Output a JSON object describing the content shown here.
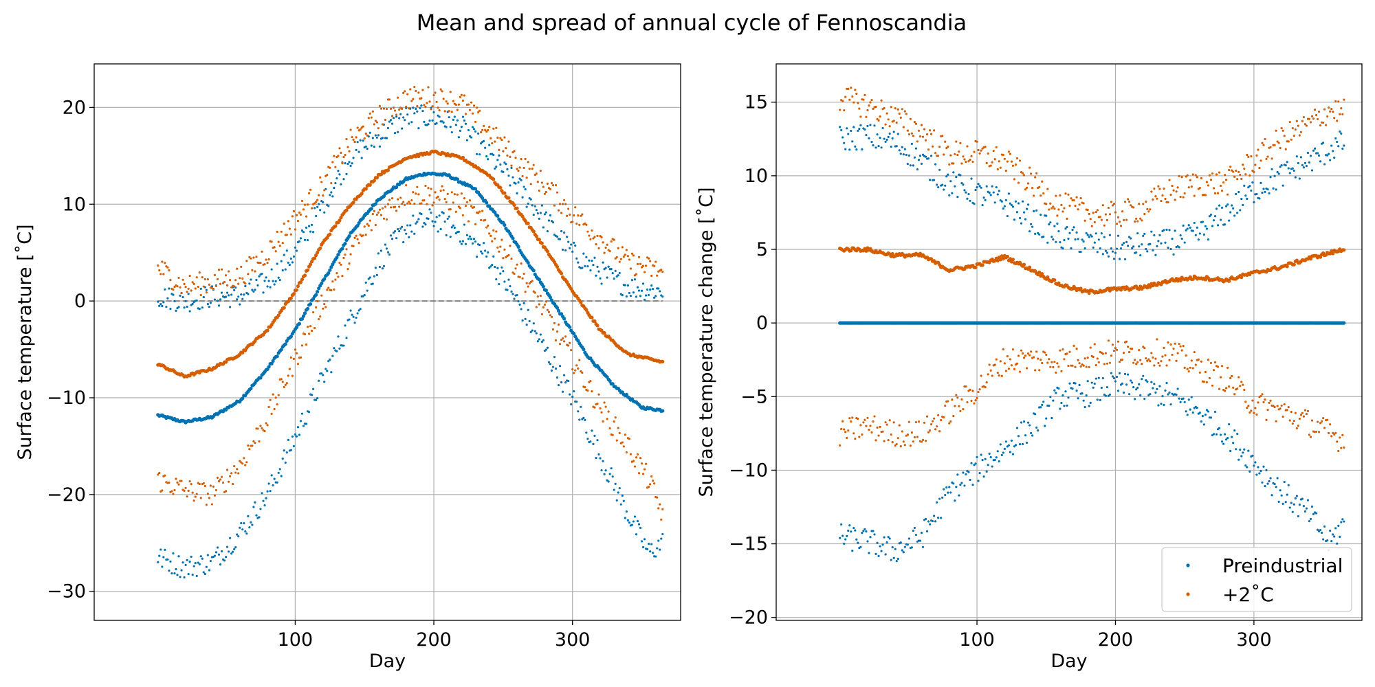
{
  "figure": {
    "title": "Mean and spread of annual cycle of Fennoscandia"
  },
  "colors": {
    "preindustrial": "#0072b2",
    "plus2": "#d55e00",
    "grid": "#b0b0b0",
    "zero_line": "#808080"
  },
  "chart_data": [
    {
      "type": "scatter",
      "xlabel": "Day",
      "ylabel": "Surface temperature [˚C]",
      "xlim": [
        -45,
        378
      ],
      "ylim": [
        -33,
        24.5
      ],
      "xticks": [
        100,
        200,
        300
      ],
      "yticks": [
        -30,
        -20,
        -10,
        0,
        10,
        20
      ],
      "grid": true,
      "reference_line": {
        "y": 0,
        "style": "dashed"
      },
      "series": [
        {
          "key": "pi_mean",
          "color_key": "preindustrial",
          "style": "mean",
          "knots": [
            [
              1,
              -11.8
            ],
            [
              20,
              -12.5
            ],
            [
              40,
              -12.0
            ],
            [
              60,
              -10.3
            ],
            [
              80,
              -7.0
            ],
            [
              100,
              -3.0
            ],
            [
              120,
              2.0
            ],
            [
              140,
              7.0
            ],
            [
              160,
              10.5
            ],
            [
              180,
              12.6
            ],
            [
              195,
              13.2
            ],
            [
              210,
              13.0
            ],
            [
              230,
              11.5
            ],
            [
              250,
              8.0
            ],
            [
              270,
              3.5
            ],
            [
              290,
              -1.0
            ],
            [
              310,
              -5.5
            ],
            [
              330,
              -8.8
            ],
            [
              350,
              -11.0
            ],
            [
              365,
              -11.3
            ]
          ]
        },
        {
          "key": "pi_max",
          "color_key": "preindustrial",
          "style": "spread",
          "knots": [
            [
              1,
              0.5
            ],
            [
              20,
              0.0
            ],
            [
              40,
              0.5
            ],
            [
              60,
              0.5
            ],
            [
              80,
              2.0
            ],
            [
              100,
              5.0
            ],
            [
              120,
              10.0
            ],
            [
              140,
              15.0
            ],
            [
              160,
              17.0
            ],
            [
              180,
              19.0
            ],
            [
              200,
              19.0
            ],
            [
              220,
              18.0
            ],
            [
              240,
              15.0
            ],
            [
              260,
              12.0
            ],
            [
              280,
              8.5
            ],
            [
              300,
              5.0
            ],
            [
              320,
              3.0
            ],
            [
              340,
              1.5
            ],
            [
              365,
              1.0
            ]
          ]
        },
        {
          "key": "pi_min",
          "color_key": "preindustrial",
          "style": "spread",
          "knots": [
            [
              1,
              -26.5
            ],
            [
              20,
              -27.5
            ],
            [
              40,
              -27.0
            ],
            [
              60,
              -24.0
            ],
            [
              80,
              -20.0
            ],
            [
              100,
              -14.0
            ],
            [
              120,
              -8.0
            ],
            [
              140,
              -2.0
            ],
            [
              160,
              4.0
            ],
            [
              180,
              7.5
            ],
            [
              200,
              8.5
            ],
            [
              220,
              7.0
            ],
            [
              240,
              4.5
            ],
            [
              260,
              0.0
            ],
            [
              280,
              -5.0
            ],
            [
              300,
              -10.0
            ],
            [
              320,
              -16.0
            ],
            [
              340,
              -22.0
            ],
            [
              355,
              -26.0
            ],
            [
              365,
              -25.0
            ]
          ]
        },
        {
          "key": "p2_mean",
          "color_key": "plus2",
          "style": "mean",
          "knots": [
            [
              1,
              -6.5
            ],
            [
              20,
              -7.8
            ],
            [
              40,
              -7.0
            ],
            [
              60,
              -5.5
            ],
            [
              80,
              -3.0
            ],
            [
              100,
              1.0
            ],
            [
              120,
              6.0
            ],
            [
              140,
              10.0
            ],
            [
              160,
              13.0
            ],
            [
              180,
              14.8
            ],
            [
              200,
              15.4
            ],
            [
              220,
              14.8
            ],
            [
              240,
              13.0
            ],
            [
              260,
              9.5
            ],
            [
              280,
              5.5
            ],
            [
              300,
              1.0
            ],
            [
              320,
              -3.0
            ],
            [
              340,
              -5.5
            ],
            [
              365,
              -6.3
            ]
          ]
        },
        {
          "key": "p2_max",
          "color_key": "plus2",
          "style": "spread",
          "knots": [
            [
              1,
              3.5
            ],
            [
              20,
              1.5
            ],
            [
              40,
              2.0
            ],
            [
              60,
              2.5
            ],
            [
              80,
              5.0
            ],
            [
              100,
              8.5
            ],
            [
              120,
              12.0
            ],
            [
              140,
              16.5
            ],
            [
              160,
              19.0
            ],
            [
              180,
              21.0
            ],
            [
              200,
              21.0
            ],
            [
              220,
              20.5
            ],
            [
              240,
              17.5
            ],
            [
              260,
              14.5
            ],
            [
              280,
              12.0
            ],
            [
              300,
              9.0
            ],
            [
              320,
              6.5
            ],
            [
              340,
              4.0
            ],
            [
              365,
              3.0
            ]
          ]
        },
        {
          "key": "p2_min",
          "color_key": "plus2",
          "style": "spread",
          "knots": [
            [
              1,
              -18.5
            ],
            [
              20,
              -19.5
            ],
            [
              40,
              -20.0
            ],
            [
              60,
              -17.0
            ],
            [
              80,
              -12.0
            ],
            [
              100,
              -6.0
            ],
            [
              120,
              0.0
            ],
            [
              140,
              5.0
            ],
            [
              160,
              9.0
            ],
            [
              180,
              11.0
            ],
            [
              200,
              11.0
            ],
            [
              220,
              10.0
            ],
            [
              240,
              7.5
            ],
            [
              260,
              3.5
            ],
            [
              280,
              -1.0
            ],
            [
              300,
              -6.0
            ],
            [
              320,
              -11.0
            ],
            [
              340,
              -15.0
            ],
            [
              355,
              -18.5
            ],
            [
              365,
              -22.0
            ]
          ]
        }
      ]
    },
    {
      "type": "scatter",
      "xlabel": "Day",
      "ylabel": "Surface temperature change [˚C]",
      "xlim": [
        -45,
        378
      ],
      "ylim": [
        -20.2,
        17.6
      ],
      "xticks": [
        100,
        200,
        300
      ],
      "yticks": [
        -20,
        -15,
        -10,
        -5,
        0,
        5,
        10,
        15
      ],
      "grid": true,
      "legend": {
        "location": "lower-right",
        "entries": [
          {
            "label": "Preindustrial",
            "color_key": "preindustrial"
          },
          {
            "label": "+2˚C",
            "color_key": "plus2"
          }
        ]
      },
      "series": [
        {
          "key": "pi_mean",
          "color_key": "preindustrial",
          "style": "mean",
          "knots": [
            [
              1,
              0.0
            ],
            [
              365,
              0.0
            ]
          ]
        },
        {
          "key": "pi_max",
          "color_key": "preindustrial",
          "style": "spread",
          "knots": [
            [
              1,
              12.5
            ],
            [
              20,
              12.7
            ],
            [
              40,
              12.3
            ],
            [
              60,
              11.0
            ],
            [
              80,
              9.5
            ],
            [
              100,
              8.8
            ],
            [
              120,
              8.2
            ],
            [
              140,
              7.0
            ],
            [
              160,
              5.8
            ],
            [
              180,
              5.5
            ],
            [
              200,
              5.0
            ],
            [
              220,
              5.3
            ],
            [
              240,
              5.5
            ],
            [
              260,
              6.0
            ],
            [
              280,
              7.5
            ],
            [
              300,
              9.0
            ],
            [
              320,
              10.0
            ],
            [
              340,
              11.0
            ],
            [
              365,
              12.3
            ]
          ]
        },
        {
          "key": "pi_min",
          "color_key": "preindustrial",
          "style": "spread",
          "knots": [
            [
              1,
              -14.5
            ],
            [
              20,
              -14.8
            ],
            [
              40,
              -15.5
            ],
            [
              60,
              -14.5
            ],
            [
              80,
              -11.5
            ],
            [
              100,
              -10.0
            ],
            [
              120,
              -8.5
            ],
            [
              140,
              -7.0
            ],
            [
              160,
              -5.0
            ],
            [
              180,
              -4.8
            ],
            [
              200,
              -4.2
            ],
            [
              220,
              -4.5
            ],
            [
              240,
              -5.0
            ],
            [
              260,
              -6.0
            ],
            [
              280,
              -7.5
            ],
            [
              300,
              -9.5
            ],
            [
              320,
              -11.5
            ],
            [
              340,
              -13.0
            ],
            [
              355,
              -15.0
            ],
            [
              365,
              -13.5
            ]
          ]
        },
        {
          "key": "p2_mean",
          "color_key": "plus2",
          "style": "mean",
          "knots": [
            [
              1,
              5.0
            ],
            [
              20,
              5.0
            ],
            [
              40,
              4.6
            ],
            [
              60,
              4.6
            ],
            [
              80,
              3.6
            ],
            [
              100,
              3.9
            ],
            [
              120,
              4.5
            ],
            [
              140,
              3.6
            ],
            [
              160,
              2.6
            ],
            [
              180,
              2.1
            ],
            [
              200,
              2.3
            ],
            [
              220,
              2.4
            ],
            [
              240,
              2.9
            ],
            [
              260,
              3.1
            ],
            [
              280,
              2.9
            ],
            [
              300,
              3.4
            ],
            [
              320,
              3.8
            ],
            [
              340,
              4.4
            ],
            [
              365,
              5.0
            ]
          ]
        },
        {
          "key": "p2_max",
          "color_key": "plus2",
          "style": "spread",
          "knots": [
            [
              1,
              15.3
            ],
            [
              20,
              14.8
            ],
            [
              40,
              14.0
            ],
            [
              60,
              13.0
            ],
            [
              80,
              11.5
            ],
            [
              100,
              11.5
            ],
            [
              120,
              11.0
            ],
            [
              140,
              9.5
            ],
            [
              160,
              8.0
            ],
            [
              180,
              7.5
            ],
            [
              200,
              7.3
            ],
            [
              220,
              7.8
            ],
            [
              240,
              9.0
            ],
            [
              260,
              9.5
            ],
            [
              280,
              9.5
            ],
            [
              300,
              11.0
            ],
            [
              320,
              12.5
            ],
            [
              340,
              13.5
            ],
            [
              355,
              14.5
            ],
            [
              365,
              14.3
            ]
          ]
        },
        {
          "key": "p2_min",
          "color_key": "plus2",
          "style": "spread",
          "knots": [
            [
              1,
              -7.5
            ],
            [
              20,
              -7.0
            ],
            [
              40,
              -7.5
            ],
            [
              60,
              -7.5
            ],
            [
              80,
              -6.0
            ],
            [
              100,
              -4.5
            ],
            [
              120,
              -2.5
            ],
            [
              140,
              -2.5
            ],
            [
              160,
              -2.5
            ],
            [
              180,
              -2.2
            ],
            [
              200,
              -2.0
            ],
            [
              220,
              -2.0
            ],
            [
              240,
              -2.0
            ],
            [
              260,
              -3.0
            ],
            [
              280,
              -3.8
            ],
            [
              300,
              -5.5
            ],
            [
              320,
              -6.0
            ],
            [
              340,
              -6.8
            ],
            [
              355,
              -7.5
            ],
            [
              365,
              -8.0
            ]
          ]
        }
      ]
    }
  ]
}
